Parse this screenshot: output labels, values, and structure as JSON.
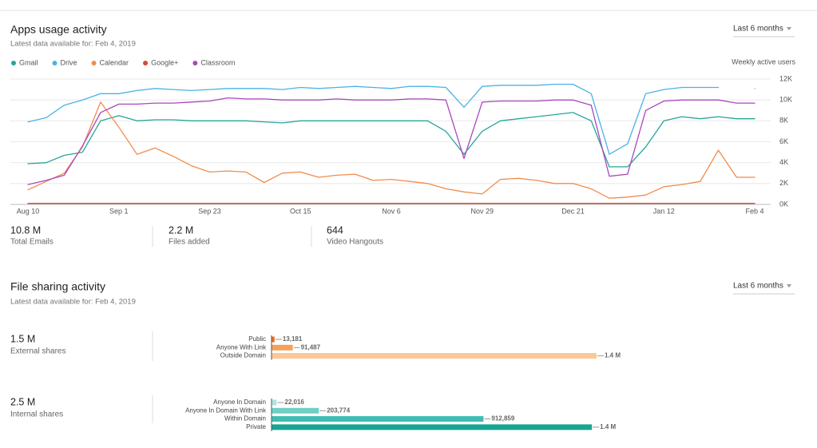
{
  "usage": {
    "title": "Apps usage activity",
    "subtitle": "Latest data available for: Feb 4, 2019",
    "range": "Last 6 months",
    "chart_data": {
      "type": "line",
      "y_label": "Weekly active users",
      "categories": [
        "Aug 10",
        null,
        null,
        null,
        null,
        "Sep 1",
        null,
        null,
        null,
        null,
        "Sep 23",
        null,
        null,
        null,
        null,
        "Oct 15",
        null,
        null,
        null,
        null,
        "Nov 6",
        null,
        null,
        null,
        null,
        "Nov 29",
        null,
        null,
        null,
        null,
        "Dec 21",
        null,
        null,
        null,
        null,
        "Jan 12",
        null,
        null,
        null,
        null,
        "Feb 4"
      ],
      "series": [
        {
          "name": "Gmail",
          "color": "#26a69a",
          "values": [
            3900,
            4000,
            4700,
            5000,
            8000,
            8500,
            8000,
            8100,
            8100,
            8000,
            8000,
            8000,
            8000,
            7900,
            7800,
            8000,
            8000,
            8000,
            8000,
            8000,
            8000,
            8000,
            8000,
            7000,
            4800,
            7000,
            8000,
            8200,
            8400,
            8600,
            8800,
            8000,
            3600,
            3600,
            5500,
            8000,
            8400,
            8200,
            8400,
            8200,
            8200
          ]
        },
        {
          "name": "Drive",
          "color": "#4ab3e6",
          "values": [
            7900,
            8300,
            9500,
            10000,
            10600,
            10600,
            10900,
            11100,
            11000,
            10900,
            11000,
            11100,
            11100,
            11100,
            11000,
            11200,
            11100,
            11200,
            11300,
            11200,
            11100,
            11300,
            11300,
            11200,
            9300,
            11300,
            11400,
            11400,
            11400,
            11500,
            11500,
            10600,
            4800,
            5800,
            10600,
            11000,
            11200,
            11200,
            11200,
            null,
            11100
          ]
        },
        {
          "name": "Calendar",
          "color": "#f08c4e",
          "values": [
            1400,
            2200,
            3000,
            5500,
            9800,
            7400,
            4800,
            5400,
            4600,
            3700,
            3100,
            3200,
            3100,
            2100,
            3000,
            3100,
            2600,
            2800,
            2900,
            2300,
            2400,
            2200,
            2000,
            1500,
            1200,
            1000,
            2400,
            2500,
            2300,
            2000,
            2000,
            1500,
            600,
            700,
            900,
            1700,
            1900,
            2200,
            5200,
            2600,
            2600
          ]
        },
        {
          "name": "Google+",
          "color": "#d9472b",
          "values": [
            100,
            100,
            100,
            100,
            100,
            100,
            100,
            100,
            100,
            100,
            100,
            100,
            100,
            100,
            100,
            100,
            100,
            100,
            100,
            100,
            100,
            100,
            100,
            100,
            100,
            100,
            100,
            100,
            100,
            100,
            100,
            100,
            100,
            100,
            100,
            100,
            100,
            100,
            100,
            100,
            100
          ]
        },
        {
          "name": "Classroom",
          "color": "#ab47bc",
          "values": [
            1900,
            2300,
            2800,
            5600,
            8800,
            9600,
            9600,
            9700,
            9700,
            9800,
            9900,
            10200,
            10100,
            10100,
            10000,
            10000,
            10000,
            10100,
            10000,
            10000,
            10000,
            10100,
            10100,
            10000,
            4400,
            9800,
            9900,
            9900,
            9900,
            10000,
            10000,
            9500,
            2700,
            2900,
            9000,
            9900,
            10000,
            10000,
            10000,
            9700,
            9700
          ]
        }
      ],
      "ylim": [
        0,
        12000
      ],
      "yticks": [
        {
          "value": 0,
          "label": "0K"
        },
        {
          "value": 2000,
          "label": "2K"
        },
        {
          "value": 4000,
          "label": "4K"
        },
        {
          "value": 6000,
          "label": "6K"
        },
        {
          "value": 8000,
          "label": "8K"
        },
        {
          "value": 10000,
          "label": "10K"
        },
        {
          "value": 12000,
          "label": "12K"
        }
      ],
      "grid": true,
      "legend": "top-left"
    },
    "stats": [
      {
        "value": "10.8 M",
        "label": "Total Emails"
      },
      {
        "value": "2.2 M",
        "label": "Files added"
      },
      {
        "value": "644",
        "label": "Video Hangouts"
      }
    ]
  },
  "sharing": {
    "title": "File sharing activity",
    "subtitle": "Latest data available for: Feb 4, 2019",
    "range": "Last 6 months",
    "groups": [
      {
        "total": "1.5 M",
        "label": "External shares",
        "chart_data": {
          "type": "bar",
          "orientation": "horizontal",
          "categories": [
            "Public",
            "Anyone With Link",
            "Outside Domain"
          ],
          "values": [
            13181,
            91487,
            1400000
          ],
          "value_labels": [
            "13,181",
            "91,487",
            "1.4 M"
          ],
          "colors": [
            "#e8711c",
            "#f5a05a",
            "#fbc895"
          ],
          "xlim": [
            0,
            1400000
          ]
        }
      },
      {
        "total": "2.5 M",
        "label": "Internal shares",
        "chart_data": {
          "type": "bar",
          "orientation": "horizontal",
          "categories": [
            "Anyone In Domain",
            "Anyone In Domain With Link",
            "Within Domain",
            "Private"
          ],
          "values": [
            22016,
            203774,
            912859,
            1380000
          ],
          "value_labels": [
            "22,016",
            "203,774",
            "912,859",
            "1.4 M"
          ],
          "colors": [
            "#b2e4df",
            "#6fcfc6",
            "#3fbdb0",
            "#17a593"
          ],
          "xlim": [
            0,
            1400000
          ]
        }
      }
    ]
  }
}
